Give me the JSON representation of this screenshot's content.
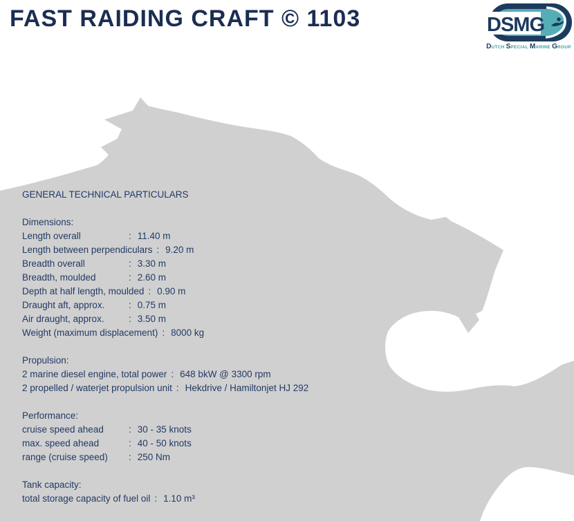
{
  "header": {
    "title": "FAST RAIDING CRAFT © 1103"
  },
  "logo": {
    "acronym": "DSMG",
    "caption_parts": [
      {
        "initial": "D",
        "rest": "UTCH"
      },
      {
        "initial": "S",
        "rest": "PECIAL"
      },
      {
        "initial": "M",
        "rest": "ARINE"
      },
      {
        "initial": "G",
        "rest": "ROUP"
      }
    ],
    "colors": {
      "navy": "#1c3a5e",
      "teal": "#55aeb5",
      "caption_teal": "#3d9da4"
    }
  },
  "watermark": {
    "name": "lion-silhouette",
    "color": "#d0d0d0"
  },
  "document": {
    "heading": "GENERAL TECHNICAL PARTICULARS",
    "colon": ":",
    "sections": [
      {
        "title": "Dimensions:",
        "rows": [
          {
            "label": "Length overall",
            "value": "11.40 m"
          },
          {
            "label": "Length between perpendiculars",
            "value": "9.20 m"
          },
          {
            "label": "Breadth overall",
            "value": "3.30 m"
          },
          {
            "label": "Breadth, moulded",
            "value": "2.60 m"
          },
          {
            "label": "Depth at half length, moulded",
            "value": "0.90 m"
          },
          {
            "label": "Draught aft, approx.",
            "value": "0.75 m"
          },
          {
            "label": "Air draught, approx.",
            "value": "3.50 m"
          },
          {
            "label": "Weight (maximum displacement)",
            "value": "8000 kg"
          }
        ]
      },
      {
        "title": "Propulsion:",
        "rows": [
          {
            "label": "2 marine diesel engine, total power",
            "value": "648 bkW @ 3300 rpm"
          },
          {
            "label": "2 propelled / waterjet propulsion unit",
            "value": "Hekdrive / Hamiltonjet HJ 292"
          }
        ]
      },
      {
        "title": "Performance:",
        "rows": [
          {
            "label": "cruise speed ahead",
            "value": "30 - 35 knots"
          },
          {
            "label": "max. speed ahead",
            "value": "40 - 50 knots"
          },
          {
            "label": "range (cruise speed)",
            "value": "250 Nm"
          }
        ]
      },
      {
        "title": "Tank capacity:",
        "rows": [
          {
            "label": "total storage capacity of fuel oil",
            "value": "1.10 m³"
          }
        ]
      }
    ]
  }
}
